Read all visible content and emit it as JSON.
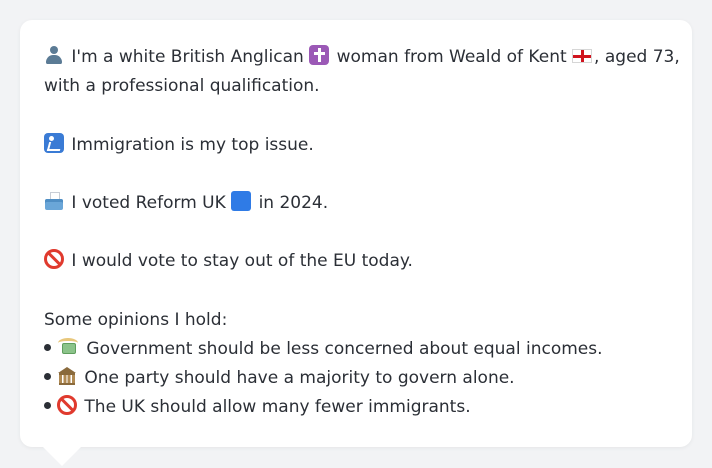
{
  "profile": {
    "identity_before": "I'm a white British Anglican",
    "identity_middle": "woman from Weald of Kent",
    "identity_after": ", aged 73,",
    "identity_line2": "with a professional qualification.",
    "top_issue": "Immigration is my top issue.",
    "vote_before": "I voted Reform UK",
    "vote_after": "in 2024.",
    "eu_stance": "I would vote to stay out of the EU today."
  },
  "opinions": {
    "heading": "Some opinions I hold:",
    "items": [
      {
        "icon": "money-with-wings-icon",
        "text": "Government should be less concerned about equal incomes."
      },
      {
        "icon": "classical-building-icon",
        "text": "One party should have a majority to govern alone."
      },
      {
        "icon": "prohibited-icon",
        "text": "The UK should allow many fewer immigrants."
      }
    ]
  },
  "colors": {
    "background": "#f2f3f5",
    "card": "#ffffff",
    "text": "#2b2f36",
    "party_square": "#2f7be6",
    "prohibited": "#e03a2e"
  }
}
